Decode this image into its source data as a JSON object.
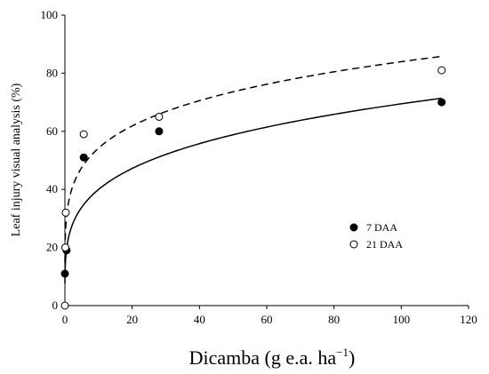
{
  "chart_data": {
    "type": "scatter",
    "title": "",
    "xlabel": "Dicamba (g e.a. ha",
    "xlabel_superscript": "−1",
    "xlabel_suffix": ")",
    "ylabel": "Leaf injury visual analysis (%)",
    "xlim": [
      0,
      120
    ],
    "ylim": [
      0,
      100
    ],
    "xticks": [
      0,
      20,
      40,
      60,
      80,
      100,
      120
    ],
    "yticks": [
      0,
      20,
      40,
      60,
      80,
      100
    ],
    "grid": false,
    "legend_position": "right",
    "series": [
      {
        "name": "7 DAA",
        "marker": "filled-circle",
        "line_style": "solid",
        "points": [
          {
            "x": 0,
            "y": 11
          },
          {
            "x": 0.5,
            "y": 19
          },
          {
            "x": 5.6,
            "y": 51
          },
          {
            "x": 28,
            "y": 60
          },
          {
            "x": 112,
            "y": 70
          }
        ],
        "fit": {
          "model": "log-logistic",
          "params": {
            "a": 23,
            "b": 0.24
          }
        }
      },
      {
        "name": "21 DAA",
        "marker": "open-circle",
        "line_style": "dashed",
        "points": [
          {
            "x": 0,
            "y": 0
          },
          {
            "x": 0.125,
            "y": 20
          },
          {
            "x": 0.25,
            "y": 32
          },
          {
            "x": 5.6,
            "y": 59
          },
          {
            "x": 28,
            "y": 65
          },
          {
            "x": 112,
            "y": 81
          }
        ],
        "fit": {
          "model": "log-logistic",
          "params": {
            "a": 35,
            "b": 0.19
          }
        }
      }
    ]
  }
}
